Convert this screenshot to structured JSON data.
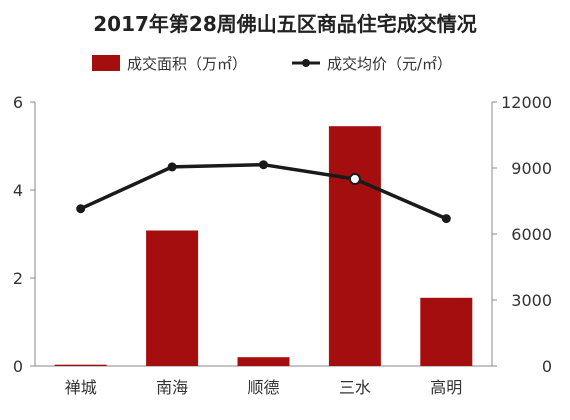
{
  "chart_data": {
    "type": "bar+line",
    "title": "2017年第28周佛山五区商品住宅成交情况",
    "categories": [
      "禅城",
      "南海",
      "顺德",
      "三水",
      "高明"
    ],
    "series": [
      {
        "name": "成交面积（万㎡）",
        "type": "bar",
        "axis": "left",
        "color": "#a50e0e",
        "values": [
          0.03,
          3.08,
          0.2,
          5.45,
          1.55
        ]
      },
      {
        "name": "成交均价（元/㎡）",
        "type": "line",
        "axis": "right",
        "color": "#1a1a1a",
        "values": [
          7150,
          9050,
          9150,
          8500,
          6700
        ]
      }
    ],
    "y_left": {
      "min": 0,
      "max": 6,
      "ticks": [
        0,
        2,
        4,
        6
      ]
    },
    "y_right": {
      "min": 0,
      "max": 12000,
      "ticks": [
        0,
        3000,
        6000,
        9000,
        12000
      ]
    },
    "grid": false,
    "legend": "top"
  }
}
